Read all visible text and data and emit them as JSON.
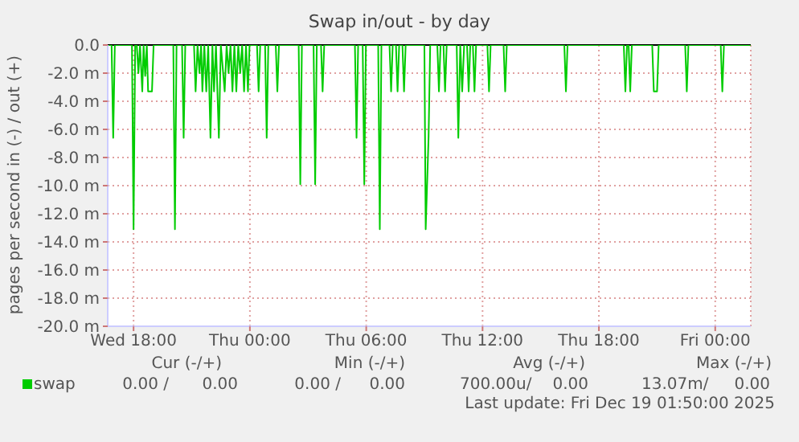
{
  "chart_data": {
    "type": "line",
    "title": "Swap in/out - by day",
    "ylabel": "pages per second in (-) / out (+)",
    "x": [
      "2025-12-17T16:40",
      "2025-12-17T16:52",
      "2025-12-17T16:57",
      "2025-12-17T17:02",
      "2025-12-17T17:55",
      "2025-12-17T18:00",
      "2025-12-17T18:05",
      "2025-12-17T18:10",
      "2025-12-17T18:15",
      "2025-12-17T18:20",
      "2025-12-17T18:27",
      "2025-12-17T18:31",
      "2025-12-17T18:36",
      "2025-12-17T18:41",
      "2025-12-17T18:45",
      "2025-12-17T18:57",
      "2025-12-17T19:02",
      "2025-12-17T20:03",
      "2025-12-17T20:08",
      "2025-12-17T20:13",
      "2025-12-17T20:30",
      "2025-12-17T20:35",
      "2025-12-17T20:40",
      "2025-12-17T21:07",
      "2025-12-17T21:12",
      "2025-12-17T21:18",
      "2025-12-17T21:24",
      "2025-12-17T21:29",
      "2025-12-17T21:33",
      "2025-12-17T21:39",
      "2025-12-17T21:45",
      "2025-12-17T21:51",
      "2025-12-17T21:58",
      "2025-12-17T22:04",
      "2025-12-17T22:09",
      "2025-12-17T22:15",
      "2025-12-17T22:24",
      "2025-12-17T22:30",
      "2025-12-17T22:42",
      "2025-12-17T22:48",
      "2025-12-17T22:54",
      "2025-12-17T23:00",
      "2025-12-17T23:06",
      "2025-12-17T23:12",
      "2025-12-17T23:18",
      "2025-12-17T23:24",
      "2025-12-17T23:30",
      "2025-12-17T23:36",
      "2025-12-17T23:42",
      "2025-12-17T23:48",
      "2025-12-17T23:54",
      "2025-12-17T23:59",
      "2025-12-18T00:22",
      "2025-12-18T00:27",
      "2025-12-18T00:32",
      "2025-12-18T00:47",
      "2025-12-18T00:52",
      "2025-12-18T00:57",
      "2025-12-18T01:20",
      "2025-12-18T01:25",
      "2025-12-18T01:30",
      "2025-12-18T02:31",
      "2025-12-18T02:36",
      "2025-12-18T02:41",
      "2025-12-18T03:17",
      "2025-12-18T03:22",
      "2025-12-18T03:27",
      "2025-12-18T03:40",
      "2025-12-18T03:45",
      "2025-12-18T03:50",
      "2025-12-18T05:25",
      "2025-12-18T05:30",
      "2025-12-18T05:35",
      "2025-12-18T05:49",
      "2025-12-18T05:54",
      "2025-12-18T05:59",
      "2025-12-18T06:37",
      "2025-12-18T06:42",
      "2025-12-18T06:47",
      "2025-12-18T07:12",
      "2025-12-18T07:17",
      "2025-12-18T07:22",
      "2025-12-18T07:32",
      "2025-12-18T07:37",
      "2025-12-18T07:42",
      "2025-12-18T07:52",
      "2025-12-18T07:57",
      "2025-12-18T08:02",
      "2025-12-18T09:00",
      "2025-12-18T09:04",
      "2025-12-18T09:13",
      "2025-12-18T09:18",
      "2025-12-18T09:40",
      "2025-12-18T09:45",
      "2025-12-18T09:50",
      "2025-12-18T09:59",
      "2025-12-18T10:04",
      "2025-12-18T10:09",
      "2025-12-18T10:40",
      "2025-12-18T10:45",
      "2025-12-18T10:51",
      "2025-12-18T10:57",
      "2025-12-18T11:03",
      "2025-12-18T11:12",
      "2025-12-18T11:17",
      "2025-12-18T11:22",
      "2025-12-18T11:30",
      "2025-12-18T11:35",
      "2025-12-18T11:40",
      "2025-12-18T12:15",
      "2025-12-18T12:20",
      "2025-12-18T12:25",
      "2025-12-18T13:05",
      "2025-12-18T13:10",
      "2025-12-18T13:15",
      "2025-12-18T16:13",
      "2025-12-18T16:18",
      "2025-12-18T16:23",
      "2025-12-18T19:17",
      "2025-12-18T19:22",
      "2025-12-18T19:27",
      "2025-12-18T19:32",
      "2025-12-18T19:37",
      "2025-12-18T19:42",
      "2025-12-18T20:45",
      "2025-12-18T20:50",
      "2025-12-18T21:00",
      "2025-12-18T21:05",
      "2025-12-18T22:27",
      "2025-12-18T22:32",
      "2025-12-18T22:37",
      "2025-12-19T00:17",
      "2025-12-19T00:22",
      "2025-12-19T00:27",
      "2025-12-19T01:50"
    ],
    "series": [
      {
        "name": "swap",
        "color": "#00cc00",
        "values": [
          0,
          0,
          -6.6,
          0,
          0,
          -13.1,
          0,
          0,
          -2.0,
          0,
          -3.3,
          0,
          -2.2,
          0,
          -3.3,
          -3.3,
          0,
          0,
          -13.1,
          0,
          0,
          -6.6,
          0,
          0,
          -3.3,
          0,
          -2.0,
          0,
          -3.3,
          0,
          -3.3,
          0,
          -6.6,
          0,
          -3.3,
          0,
          -6.6,
          0,
          -3.3,
          0,
          -2.0,
          0,
          -3.3,
          0,
          -3.3,
          0,
          -2.0,
          0,
          -3.3,
          0,
          -3.3,
          0,
          0,
          -3.3,
          0,
          0,
          -6.6,
          0,
          0,
          -3.3,
          0,
          0,
          -9.9,
          0,
          0,
          -9.9,
          0,
          0,
          -3.3,
          0,
          0,
          -6.6,
          0,
          0,
          -9.9,
          0,
          0,
          -13.1,
          0,
          0,
          -3.3,
          0,
          0,
          -3.3,
          0,
          0,
          -3.3,
          0,
          0,
          -13.1,
          -6.5,
          0,
          0,
          -3.3,
          0,
          0,
          -3.3,
          0,
          0,
          -6.6,
          0,
          -3.3,
          0,
          0,
          -3.3,
          0,
          0,
          -3.3,
          0,
          0,
          -3.3,
          0,
          0,
          -3.3,
          0,
          0,
          -3.3,
          0,
          0,
          -3.3,
          0,
          0,
          -3.3,
          0,
          0,
          -3.3,
          -3.3,
          0,
          0,
          -3.3,
          0,
          0,
          -3.3,
          0,
          0
        ]
      }
    ],
    "xlim": [
      "2025-12-17T16:40",
      "2025-12-19T01:50"
    ],
    "xticks": [
      {
        "value": "2025-12-17T18:00",
        "label": "Wed 18:00"
      },
      {
        "value": "2025-12-18T00:00",
        "label": "Thu 00:00"
      },
      {
        "value": "2025-12-18T06:00",
        "label": "Thu 06:00"
      },
      {
        "value": "2025-12-18T12:00",
        "label": "Thu 12:00"
      },
      {
        "value": "2025-12-18T18:00",
        "label": "Thu 18:00"
      },
      {
        "value": "2025-12-19T00:00",
        "label": "Fri 00:00"
      }
    ],
    "ylim": [
      -20,
      0
    ],
    "yticks": [
      {
        "value": 0,
        "label": "0.0"
      },
      {
        "value": -2,
        "label": "-2.0 m"
      },
      {
        "value": -4,
        "label": "-4.0 m"
      },
      {
        "value": -6,
        "label": "-6.0 m"
      },
      {
        "value": -8,
        "label": "-8.0 m"
      },
      {
        "value": -10,
        "label": "-10.0 m"
      },
      {
        "value": -12,
        "label": "-12.0 m"
      },
      {
        "value": -14,
        "label": "-14.0 m"
      },
      {
        "value": -16,
        "label": "-16.0 m"
      },
      {
        "value": -18,
        "label": "-18.0 m"
      },
      {
        "value": -20,
        "label": "-20.0 m"
      }
    ],
    "grid": true,
    "legend": "bottom left",
    "marker": "none",
    "line_style": "solid",
    "annotations": [
      "Cur (-/+)",
      "Min (-/+)",
      "Avg (-/+)",
      "Max (-/+)",
      "0.00 /",
      "0.00",
      "0.00 /",
      "0.00",
      "700.00u/",
      "0.00",
      "13.07m/",
      "0.00",
      "Last update: Fri Dec 19 01:50:00 2025"
    ]
  }
}
